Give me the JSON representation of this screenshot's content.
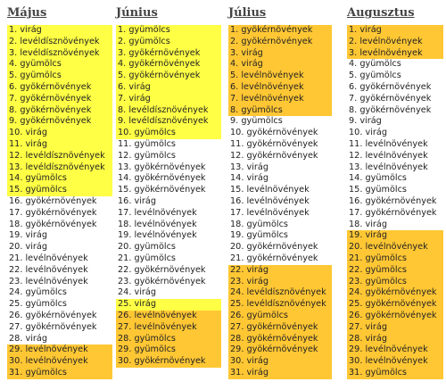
{
  "colors": {
    "yellow": "#ffff45",
    "orange": "#ffc734",
    "none": "#ffffff"
  },
  "months": [
    {
      "title": "Május",
      "rows": [
        {
          "text": "1. virág",
          "hl": "y"
        },
        {
          "text": "2. levéldísznövények",
          "hl": "y"
        },
        {
          "text": "3. levéldísznövények",
          "hl": "y"
        },
        {
          "text": "4. gyümölcs",
          "hl": "y"
        },
        {
          "text": "5. gyümölcs",
          "hl": "y"
        },
        {
          "text": "6. gyökérnövények",
          "hl": "y"
        },
        {
          "text": "7. gyökérnövények",
          "hl": "y"
        },
        {
          "text": "8. gyökérnövények",
          "hl": "y"
        },
        {
          "text": "9. gyökérnövények",
          "hl": "y"
        },
        {
          "text": "10. virág",
          "hl": "y"
        },
        {
          "text": "11. virág",
          "hl": "y"
        },
        {
          "text": "12. levéldísznövények",
          "hl": "y"
        },
        {
          "text": "13. levéldísznövények",
          "hl": "y"
        },
        {
          "text": "14. gyümölcs",
          "hl": "y"
        },
        {
          "text": "15. gyümölcs",
          "hl": "y"
        },
        {
          "text": "16. gyökérnövények",
          "hl": "n"
        },
        {
          "text": "17. gyökérnövények",
          "hl": "n"
        },
        {
          "text": "18. gyökérnövények",
          "hl": "n"
        },
        {
          "text": "19. virág",
          "hl": "n"
        },
        {
          "text": "20. virág",
          "hl": "n"
        },
        {
          "text": "21. levélnövények",
          "hl": "n"
        },
        {
          "text": "22. levélnövények",
          "hl": "n"
        },
        {
          "text": "23. levélnövények",
          "hl": "n"
        },
        {
          "text": "24. gyümölcs",
          "hl": "n"
        },
        {
          "text": "25. gyümölcs",
          "hl": "n"
        },
        {
          "text": "26. gyökérnövények",
          "hl": "n"
        },
        {
          "text": "27. gyökérnövények",
          "hl": "n"
        },
        {
          "text": "28. virág",
          "hl": "n"
        },
        {
          "text": "29. levélnövények",
          "hl": "o"
        },
        {
          "text": "30. levélnövények",
          "hl": "o"
        },
        {
          "text": "31. gyümölcs",
          "hl": "o"
        }
      ]
    },
    {
      "title": "Június",
      "rows": [
        {
          "text": "1. gyümölcs",
          "hl": "y"
        },
        {
          "text": "2. gyümölcs",
          "hl": "y"
        },
        {
          "text": "3. gyökérnövények",
          "hl": "y"
        },
        {
          "text": "4. gyökérnövények",
          "hl": "y"
        },
        {
          "text": "5. gyökérnövények",
          "hl": "y"
        },
        {
          "text": "6. virág",
          "hl": "y"
        },
        {
          "text": "7. virág",
          "hl": "y"
        },
        {
          "text": "8. levéldísznövények",
          "hl": "y"
        },
        {
          "text": "9. levéldísznövények",
          "hl": "y"
        },
        {
          "text": "10. gyümölcs",
          "hl": "y"
        },
        {
          "text": "11. gyümölcs",
          "hl": "n"
        },
        {
          "text": "12. gyümölcs",
          "hl": "n"
        },
        {
          "text": "13. gyökérnövények",
          "hl": "n"
        },
        {
          "text": "14. gyökérnövények",
          "hl": "n"
        },
        {
          "text": "15. gyökérnövények",
          "hl": "n"
        },
        {
          "text": "16. virág",
          "hl": "n"
        },
        {
          "text": "17. levélnövények",
          "hl": "n"
        },
        {
          "text": "18. levélnövények",
          "hl": "n"
        },
        {
          "text": "19. levélnövények",
          "hl": "n"
        },
        {
          "text": "20. gyümölcs",
          "hl": "n"
        },
        {
          "text": "21. gyümölcs",
          "hl": "n"
        },
        {
          "text": "22. gyökérnövények",
          "hl": "n"
        },
        {
          "text": "23. gyökérnövények",
          "hl": "n"
        },
        {
          "text": "24. virág",
          "hl": "n"
        },
        {
          "text": "25. virág",
          "hl": "y"
        },
        {
          "text": "26. levélnövények",
          "hl": "o"
        },
        {
          "text": "27. levélnövények",
          "hl": "o"
        },
        {
          "text": "28. gyümölcs",
          "hl": "o"
        },
        {
          "text": "29. gyümölcs",
          "hl": "o"
        },
        {
          "text": "30. gyökérnövények",
          "hl": "o"
        }
      ]
    },
    {
      "title": "Július",
      "rows": [
        {
          "text": "1. gyökérnövények",
          "hl": "o"
        },
        {
          "text": "2. gyökérnövények",
          "hl": "o"
        },
        {
          "text": "3. virág",
          "hl": "o"
        },
        {
          "text": "4. virág",
          "hl": "o"
        },
        {
          "text": "5. levélnövények",
          "hl": "o"
        },
        {
          "text": "6. levélnövények",
          "hl": "o"
        },
        {
          "text": "7. levélnövények",
          "hl": "o"
        },
        {
          "text": "8. gyümölcs",
          "hl": "o"
        },
        {
          "text": "9. gyümölcs",
          "hl": "n"
        },
        {
          "text": "10. gyökérnövények",
          "hl": "n"
        },
        {
          "text": "11. gyökérnövények",
          "hl": "n"
        },
        {
          "text": "12. gyökérnövények",
          "hl": "n"
        },
        {
          "text": "13. virág",
          "hl": "n"
        },
        {
          "text": "14. virág",
          "hl": "n"
        },
        {
          "text": "15. levélnövények",
          "hl": "n"
        },
        {
          "text": "16. levélnövények",
          "hl": "n"
        },
        {
          "text": "17. levélnövények",
          "hl": "n"
        },
        {
          "text": "18. gyümölcs",
          "hl": "n"
        },
        {
          "text": "19. gyümölcs",
          "hl": "n"
        },
        {
          "text": "20. gyökérnövények",
          "hl": "n"
        },
        {
          "text": "21. gyökérnövények",
          "hl": "n"
        },
        {
          "text": "22. virág",
          "hl": "o"
        },
        {
          "text": "23. virág",
          "hl": "o"
        },
        {
          "text": "24. levéldísznövények",
          "hl": "o"
        },
        {
          "text": "25. levéldísznövények",
          "hl": "o"
        },
        {
          "text": "26. gyümölcs",
          "hl": "o"
        },
        {
          "text": "27. gyökérnövények",
          "hl": "o"
        },
        {
          "text": "28. gyökérnövények",
          "hl": "o"
        },
        {
          "text": "29. gyökérnövények",
          "hl": "o"
        },
        {
          "text": "30. virág",
          "hl": "o"
        },
        {
          "text": "31. virág",
          "hl": "o"
        }
      ]
    },
    {
      "title": "Augusztus",
      "rows": [
        {
          "text": "1. virág",
          "hl": "o"
        },
        {
          "text": "2. levélnövények",
          "hl": "o"
        },
        {
          "text": "3. levélnövények",
          "hl": "o"
        },
        {
          "text": "4. gyümölcs",
          "hl": "n"
        },
        {
          "text": "5. gyümölcs",
          "hl": "n"
        },
        {
          "text": "6. gyökérnövények",
          "hl": "n"
        },
        {
          "text": "7. gyökérnövények",
          "hl": "n"
        },
        {
          "text": "8. gyökérnövények",
          "hl": "n"
        },
        {
          "text": "9. virág",
          "hl": "n"
        },
        {
          "text": "10. virág",
          "hl": "n"
        },
        {
          "text": "11. levélnövények",
          "hl": "n"
        },
        {
          "text": "12. levélnövények",
          "hl": "n"
        },
        {
          "text": "13. levélnövények",
          "hl": "n"
        },
        {
          "text": "14. gyümölcs",
          "hl": "n"
        },
        {
          "text": "15. gyümölcs",
          "hl": "n"
        },
        {
          "text": "16. gyökérnövények",
          "hl": "n"
        },
        {
          "text": "17. gyökérnövények",
          "hl": "n"
        },
        {
          "text": "18. virág",
          "hl": "n"
        },
        {
          "text": "19. virág",
          "hl": "o"
        },
        {
          "text": "20. levélnövények",
          "hl": "o"
        },
        {
          "text": "21. gyümölcs",
          "hl": "o"
        },
        {
          "text": "22. gyümölcs",
          "hl": "o"
        },
        {
          "text": "23. gyümölcs",
          "hl": "o"
        },
        {
          "text": "24. gyökérnövények",
          "hl": "o"
        },
        {
          "text": "25. gyökérnövények",
          "hl": "o"
        },
        {
          "text": "26. gyökérnövények",
          "hl": "o"
        },
        {
          "text": "27. virág",
          "hl": "o"
        },
        {
          "text": "28. virág",
          "hl": "o"
        },
        {
          "text": "29. levélnövények",
          "hl": "o"
        },
        {
          "text": "30. levélnövények",
          "hl": "o"
        },
        {
          "text": "31. gyümölcs",
          "hl": "o"
        }
      ]
    }
  ]
}
